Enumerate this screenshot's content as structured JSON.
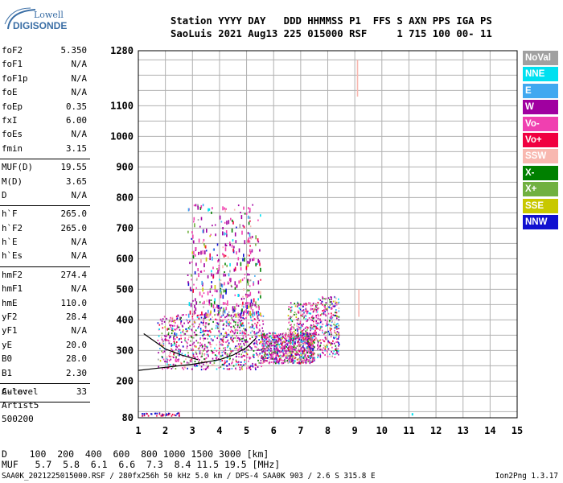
{
  "logo": {
    "line1": "Lowell",
    "line2": "DIGISONDE"
  },
  "header": {
    "line1": "Station YYYY DAY   DDD HHMMSS P1  FFS S AXN PPS IGA PS",
    "line2": "SaoLuis 2021 Aug13 225 015000 RSF     1 715 100 00- 11"
  },
  "params": {
    "group1": [
      {
        "k": "foF2",
        "v": "5.350"
      },
      {
        "k": "foF1",
        "v": "N/A"
      },
      {
        "k": "foF1p",
        "v": "N/A"
      },
      {
        "k": "foE",
        "v": "N/A"
      },
      {
        "k": "foEp",
        "v": "0.35"
      },
      {
        "k": "fxI",
        "v": "6.00"
      },
      {
        "k": "foEs",
        "v": "N/A"
      },
      {
        "k": "fmin",
        "v": "3.15"
      }
    ],
    "group2": [
      {
        "k": "MUF(D)",
        "v": "19.55"
      },
      {
        "k": "M(D)",
        "v": "3.65"
      },
      {
        "k": "D",
        "v": "N/A"
      }
    ],
    "group3": [
      {
        "k": "h`F",
        "v": "265.0"
      },
      {
        "k": "h`F2",
        "v": "265.0"
      },
      {
        "k": "h`E",
        "v": "N/A"
      },
      {
        "k": "h`Es",
        "v": "N/A"
      }
    ],
    "group4": [
      {
        "k": "hmF2",
        "v": "274.4"
      },
      {
        "k": "hmF1",
        "v": "N/A"
      },
      {
        "k": "hmE",
        "v": "110.0"
      },
      {
        "k": "yF2",
        "v": "28.4"
      },
      {
        "k": "yF1",
        "v": "N/A"
      },
      {
        "k": "yE",
        "v": "20.0"
      },
      {
        "k": "B0",
        "v": "28.0"
      },
      {
        "k": "B1",
        "v": "2.30"
      }
    ],
    "group5": [
      {
        "k": "C-level",
        "v": "33"
      }
    ]
  },
  "auto": {
    "line1": "Auto:",
    "line2": "Artist5",
    "line3": "500200"
  },
  "footer": {
    "d_row": "D    100  200  400  600  800 1000 1500 3000 [km]",
    "muf_row": "MUF   5.7  5.8  6.1  6.6  7.3  8.4 11.5 19.5 [MHz]",
    "info": "SAA0K_2021225015000.RSF / 280fx256h 50 kHz 5.0 km / DPS-4 SAA0K 903 / 2.6 S 315.8 E",
    "version": "Ion2Png 1.3.17"
  },
  "legend": [
    {
      "label": "NoVal",
      "color": "#a0a0a0"
    },
    {
      "label": "NNE",
      "color": "#00e0f0"
    },
    {
      "label": "E",
      "color": "#40a8f0"
    },
    {
      "label": "W",
      "color": "#a000a0"
    },
    {
      "label": "Vo-",
      "color": "#f040b0"
    },
    {
      "label": "Vo+",
      "color": "#f00040"
    },
    {
      "label": "SSW",
      "color": "#f8b8b0"
    },
    {
      "label": "X-",
      "color": "#008000"
    },
    {
      "label": "X+",
      "color": "#70b040"
    },
    {
      "label": "SSE",
      "color": "#c8c800"
    },
    {
      "label": "NNW",
      "color": "#1010d0"
    }
  ],
  "chart_data": {
    "type": "scatter",
    "title": "",
    "xlabel": "",
    "ylabel": "",
    "xlim": [
      1,
      15
    ],
    "ylim": [
      80,
      1280
    ],
    "x_ticks": [
      "1",
      "2",
      "3",
      "4",
      "5",
      "6",
      "7",
      "8",
      "9",
      "10",
      "11",
      "12",
      "13",
      "14",
      "15"
    ],
    "y_ticks": [
      {
        "v": 80,
        "label": "80"
      },
      {
        "v": 200,
        "label": "200"
      },
      {
        "v": 300,
        "label": "300"
      },
      {
        "v": 400,
        "label": "400"
      },
      {
        "v": 500,
        "label": "500"
      },
      {
        "v": 600,
        "label": "600"
      },
      {
        "v": 700,
        "label": "700"
      },
      {
        "v": 800,
        "label": "800"
      },
      {
        "v": 900,
        "label": "900"
      },
      {
        "v": 1000,
        "label": "1000"
      },
      {
        "v": 1100,
        "label": "1100"
      },
      {
        "v": 1280,
        "label": "1280"
      }
    ],
    "y_grid": [
      100,
      150,
      200,
      250,
      300,
      350,
      400,
      450,
      500,
      550,
      600,
      650,
      700,
      750,
      800,
      850,
      900,
      950,
      1000,
      1050,
      1100,
      1150,
      1200,
      1250
    ],
    "grid": true,
    "trace": {
      "name": "",
      "x": [
        1.0,
        1.5,
        2.0,
        2.5,
        3.0,
        3.5,
        4.0,
        4.5,
        5.0,
        5.35
      ],
      "y": [
        235,
        240,
        245,
        250,
        255,
        262,
        270,
        285,
        310,
        340
      ]
    },
    "trace2": {
      "name": "",
      "x": [
        1.2,
        1.6,
        2.0,
        2.6,
        3.2
      ],
      "y": [
        355,
        330,
        305,
        285,
        270
      ]
    },
    "echo_regions": [
      {
        "x0": 1.7,
        "x1": 5.6,
        "y0": 240,
        "y1": 420,
        "density": "high"
      },
      {
        "x0": 2.8,
        "x1": 5.5,
        "y0": 420,
        "y1": 780,
        "density": "low"
      },
      {
        "x0": 5.5,
        "x1": 7.5,
        "y0": 260,
        "y1": 360,
        "density": "high"
      },
      {
        "x0": 6.5,
        "x1": 7.6,
        "y0": 330,
        "y1": 460,
        "density": "medium"
      },
      {
        "x0": 7.6,
        "x1": 8.4,
        "y0": 280,
        "y1": 480,
        "density": "medium"
      }
    ],
    "isolated_marks": [
      {
        "x": 9.1,
        "y0": 1130,
        "y1": 1250,
        "color_key": "SSW"
      },
      {
        "x": 9.15,
        "y0": 410,
        "y1": 500,
        "color_key": "SSW"
      },
      {
        "x": 11.1,
        "y": 90,
        "color_key": "NNE"
      }
    ]
  }
}
